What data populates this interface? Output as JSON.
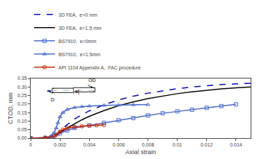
{
  "chart_data": {
    "type": "line",
    "xlabel": "Axial strain",
    "ylabel": "CTOD, mm",
    "xlim": [
      0,
      0.015
    ],
    "ylim": [
      0,
      0.35
    ],
    "xticks": [
      0,
      0.002,
      0.004,
      0.006,
      0.008,
      0.01,
      0.012,
      0.014
    ],
    "yticks": [
      {
        "value": 0,
        "label": "0.00"
      },
      0.05,
      {
        "value": 0.1,
        "label": "0.10"
      },
      0.15,
      {
        "value": 0.2,
        "label": "0.20"
      },
      0.25,
      {
        "value": 0.3,
        "label": "0.30"
      },
      0.35
    ],
    "grid": false,
    "legend": "top",
    "annotations": [
      "e[",
      "OD",
      "D"
    ],
    "series": [
      {
        "name": "3D FEA,  e=0 mm",
        "color": "#0000bb",
        "line_style": "dashed",
        "x": [
          0,
          0.0005,
          0.001,
          0.00125,
          0.0015,
          0.00165,
          0.00175,
          0.00185,
          0.002,
          0.0022,
          0.0025,
          0.003,
          0.0035,
          0.004,
          0.005,
          0.006,
          0.007,
          0.008,
          0.009,
          0.01,
          0.011,
          0.012,
          0.013,
          0.014,
          0.015
        ],
        "values": [
          0,
          0.0008,
          0.003,
          0.006,
          0.01,
          0.016,
          0.022,
          0.03,
          0.044,
          0.06,
          0.08,
          0.112,
          0.138,
          0.16,
          0.196,
          0.224,
          0.246,
          0.264,
          0.278,
          0.29,
          0.3,
          0.308,
          0.314,
          0.318,
          0.322
        ]
      },
      {
        "name": "3D FEA,  e=1.5 mm",
        "color": "#000000",
        "line_style": "solid",
        "x": [
          0,
          0.0005,
          0.001,
          0.00125,
          0.0015,
          0.00165,
          0.00175,
          0.00185,
          0.002,
          0.0022,
          0.0025,
          0.003,
          0.0035,
          0.004,
          0.005,
          0.006,
          0.007,
          0.008,
          0.009,
          0.01,
          0.011,
          0.012,
          0.013,
          0.014,
          0.015
        ],
        "values": [
          0,
          0.0005,
          0.002,
          0.004,
          0.007,
          0.011,
          0.016,
          0.022,
          0.032,
          0.044,
          0.06,
          0.085,
          0.108,
          0.128,
          0.162,
          0.19,
          0.213,
          0.232,
          0.248,
          0.261,
          0.272,
          0.281,
          0.289,
          0.295,
          0.3
        ]
      },
      {
        "name": "BS7910,  e=0mm",
        "color": "#4466cc",
        "line_style": "solid",
        "marker": "square",
        "x": [
          0.0,
          0.001,
          0.0014,
          0.0016,
          0.002,
          0.0025,
          0.003,
          0.004,
          0.005,
          0.006,
          0.007,
          0.008,
          0.009,
          0.01,
          0.011,
          0.012,
          0.013,
          0.014
        ],
        "values": [
          0.0,
          0.002,
          0.006,
          0.012,
          0.028,
          0.046,
          0.06,
          0.075,
          0.09,
          0.105,
          0.118,
          0.133,
          0.146,
          0.157,
          0.167,
          0.178,
          0.188,
          0.198
        ]
      },
      {
        "name": "BS7910,  e=1.5mm",
        "color": "#4466cc",
        "line_style": "solid",
        "marker": "triangle",
        "x": [
          0.0,
          0.001,
          0.0014,
          0.0016,
          0.00175,
          0.00185,
          0.002,
          0.0022,
          0.0025,
          0.003,
          0.0035,
          0.004,
          0.005,
          0.006,
          0.007,
          0.008
        ],
        "values": [
          0.0,
          0.003,
          0.012,
          0.032,
          0.06,
          0.09,
          0.125,
          0.15,
          0.168,
          0.18,
          0.185,
          0.188,
          0.192,
          0.194,
          0.196,
          0.197
        ]
      },
      {
        "name": "API 1104 Appendix A,  FAC procedure",
        "color": "#cc2200",
        "line_style": "solid",
        "marker": "circle",
        "x": [
          0.0,
          0.001,
          0.0015,
          0.00175,
          0.002,
          0.0022,
          0.0025,
          0.003,
          0.0035,
          0.004,
          0.0045,
          0.005
        ],
        "values": [
          0.0,
          0.002,
          0.008,
          0.02,
          0.038,
          0.05,
          0.06,
          0.066,
          0.07,
          0.073,
          0.075,
          0.077
        ]
      }
    ]
  }
}
